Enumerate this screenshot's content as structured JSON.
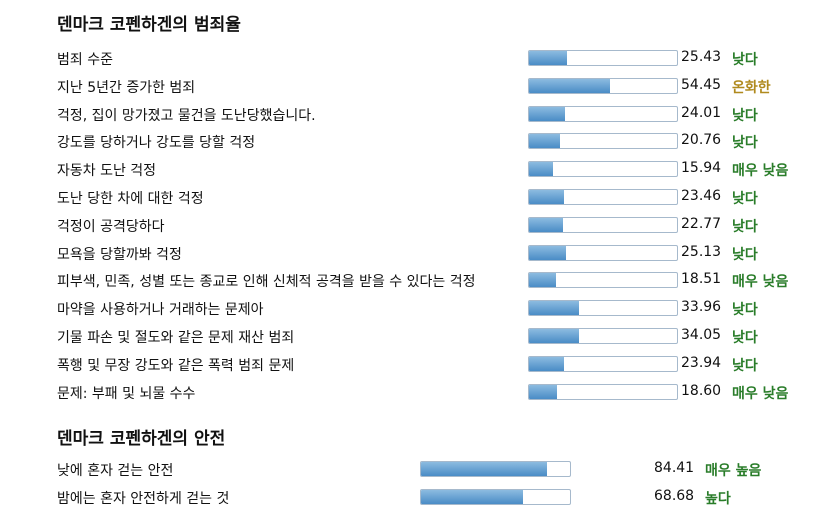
{
  "colors": {
    "low": "#2a7d2a",
    "moderate": "#b08a1e",
    "high": "#2a7d2a"
  },
  "crime": {
    "title": "덴마크 코펜하겐의 범죄율",
    "rows": [
      {
        "label": "범죄 수준",
        "value": "25.43",
        "fraction": 0.2543,
        "rating": "낮다",
        "level": "low"
      },
      {
        "label": "지난 5년간 증가한 범죄",
        "value": "54.45",
        "fraction": 0.5445,
        "rating": "온화한",
        "level": "moderate"
      },
      {
        "label": "걱정, 집이 망가졌고 물건을 도난당했습니다.",
        "value": "24.01",
        "fraction": 0.2401,
        "rating": "낮다",
        "level": "low"
      },
      {
        "label": "강도를 당하거나 강도를 당할 걱정",
        "value": "20.76",
        "fraction": 0.2076,
        "rating": "낮다",
        "level": "low"
      },
      {
        "label": "자동차 도난 걱정",
        "value": "15.94",
        "fraction": 0.1594,
        "rating": "매우 낮음",
        "level": "low"
      },
      {
        "label": "도난 당한 차에 대한 걱정",
        "value": "23.46",
        "fraction": 0.2346,
        "rating": "낮다",
        "level": "low"
      },
      {
        "label": "걱정이 공격당하다",
        "value": "22.77",
        "fraction": 0.2277,
        "rating": "낮다",
        "level": "low"
      },
      {
        "label": "모욕을 당할까봐 걱정",
        "value": "25.13",
        "fraction": 0.2513,
        "rating": "낮다",
        "level": "low"
      },
      {
        "label": "피부색, 민족, 성별 또는 종교로 인해 신체적 공격을 받을 수 있다는 걱정",
        "value": "18.51",
        "fraction": 0.1851,
        "rating": "매우 낮음",
        "level": "low"
      },
      {
        "label": "마약을 사용하거나 거래하는 문제아",
        "value": "33.96",
        "fraction": 0.3396,
        "rating": "낮다",
        "level": "low"
      },
      {
        "label": "기물 파손 및 절도와 같은 문제 재산 범죄",
        "value": "34.05",
        "fraction": 0.3405,
        "rating": "낮다",
        "level": "low"
      },
      {
        "label": "폭행 및 무장 강도와 같은 폭력 범죄 문제",
        "value": "23.94",
        "fraction": 0.2394,
        "rating": "낮다",
        "level": "low"
      },
      {
        "label": "문제: 부패 및 뇌물 수수",
        "value": "18.60",
        "fraction": 0.186,
        "rating": "매우 낮음",
        "level": "low"
      }
    ]
  },
  "safety": {
    "title": "덴마크 코펜하겐의 안전",
    "rows": [
      {
        "label": "낮에 혼자 걷는 안전",
        "value": "84.41",
        "fraction": 0.8441,
        "rating": "매우 높음",
        "level": "high"
      },
      {
        "label": "밤에는 혼자 안전하게 걷는 것",
        "value": "68.68",
        "fraction": 0.6868,
        "rating": "높다",
        "level": "high"
      }
    ]
  }
}
